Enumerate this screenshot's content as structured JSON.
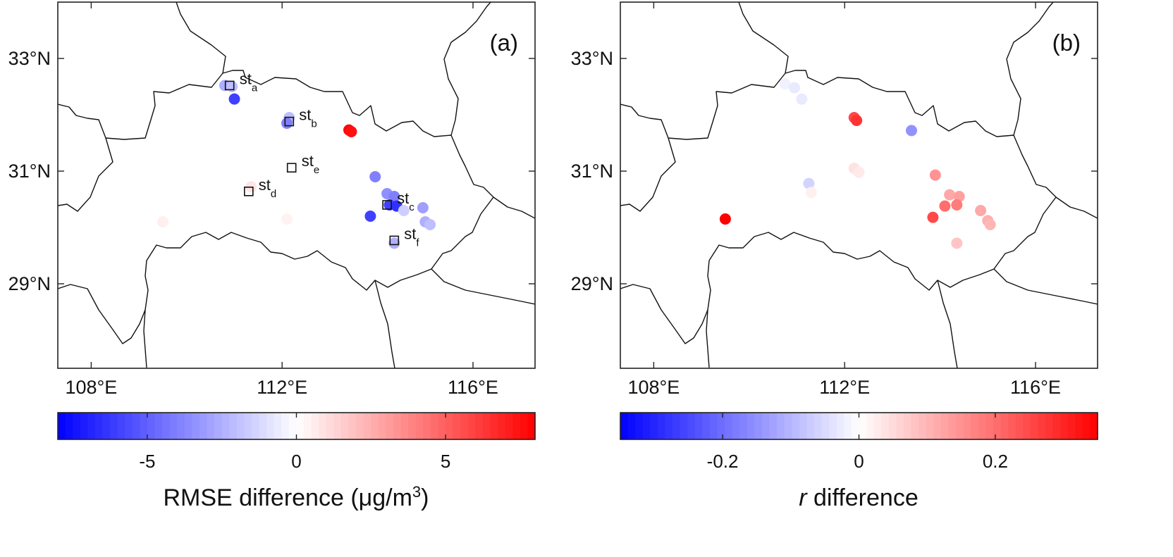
{
  "panels": [
    {
      "id": "a",
      "label": "(a)",
      "colorbar": {
        "title_prefix": "RMSE difference (μg/m",
        "title_sup": "3",
        "title_suffix": ")",
        "range": [
          -8,
          8
        ],
        "ticks": [
          {
            "value": -5,
            "label": "-5"
          },
          {
            "value": 0,
            "label": "0"
          },
          {
            "value": 5,
            "label": "5"
          }
        ]
      },
      "points": [
        {
          "lon": 110.8,
          "lat": 32.52,
          "value": -2.5
        },
        {
          "lon": 110.95,
          "lat": 32.5,
          "value": -2.0
        },
        {
          "lon": 111.0,
          "lat": 32.28,
          "value": -6.0
        },
        {
          "lon": 112.15,
          "lat": 31.95,
          "value": -2.0
        },
        {
          "lon": 112.1,
          "lat": 31.85,
          "value": -4.0
        },
        {
          "lon": 113.4,
          "lat": 31.73,
          "value": 7.8
        },
        {
          "lon": 113.45,
          "lat": 31.7,
          "value": 7.5
        },
        {
          "lon": 111.35,
          "lat": 30.72,
          "value": 0.8
        },
        {
          "lon": 112.1,
          "lat": 30.15,
          "value": 0.4
        },
        {
          "lon": 109.5,
          "lat": 30.1,
          "value": 0.5
        },
        {
          "lon": 113.95,
          "lat": 30.9,
          "value": -4.0
        },
        {
          "lon": 114.2,
          "lat": 30.6,
          "value": -3.5
        },
        {
          "lon": 114.35,
          "lat": 30.55,
          "value": -4.0
        },
        {
          "lon": 114.25,
          "lat": 30.4,
          "value": -6.0
        },
        {
          "lon": 114.4,
          "lat": 30.38,
          "value": -6.5
        },
        {
          "lon": 113.85,
          "lat": 30.2,
          "value": -6.0
        },
        {
          "lon": 114.55,
          "lat": 30.3,
          "value": -1.5
        },
        {
          "lon": 114.95,
          "lat": 30.35,
          "value": -3.0
        },
        {
          "lon": 115.0,
          "lat": 30.1,
          "value": -2.5
        },
        {
          "lon": 115.1,
          "lat": 30.05,
          "value": -2.0
        },
        {
          "lon": 114.35,
          "lat": 29.72,
          "value": -2.5
        }
      ],
      "stations": [
        {
          "name": "st",
          "sub": "a",
          "lon": 110.9,
          "lat": 32.52
        },
        {
          "name": "st",
          "sub": "b",
          "lon": 112.15,
          "lat": 31.88
        },
        {
          "name": "st",
          "sub": "c",
          "lon": 114.2,
          "lat": 30.4
        },
        {
          "name": "st",
          "sub": "d",
          "lon": 111.3,
          "lat": 30.64
        },
        {
          "name": "st",
          "sub": "e",
          "lon": 112.2,
          "lat": 31.06
        },
        {
          "name": "st",
          "sub": "f",
          "lon": 114.35,
          "lat": 29.77
        }
      ]
    },
    {
      "id": "b",
      "label": "(b)",
      "colorbar": {
        "title_prefix": "r",
        "title_suffix": " difference",
        "range": [
          -0.35,
          0.35
        ],
        "ticks": [
          {
            "value": -0.2,
            "label": "-0.2"
          },
          {
            "value": 0,
            "label": "0"
          },
          {
            "value": 0.2,
            "label": "0.2"
          }
        ]
      },
      "points": [
        {
          "lon": 110.75,
          "lat": 32.55,
          "value": -0.02
        },
        {
          "lon": 110.95,
          "lat": 32.48,
          "value": -0.03
        },
        {
          "lon": 111.1,
          "lat": 32.28,
          "value": -0.03
        },
        {
          "lon": 112.2,
          "lat": 31.95,
          "value": 0.25
        },
        {
          "lon": 112.25,
          "lat": 31.9,
          "value": 0.28
        },
        {
          "lon": 113.4,
          "lat": 31.72,
          "value": -0.15
        },
        {
          "lon": 111.25,
          "lat": 30.78,
          "value": -0.06
        },
        {
          "lon": 111.3,
          "lat": 30.62,
          "value": 0.02
        },
        {
          "lon": 112.2,
          "lat": 31.05,
          "value": 0.04
        },
        {
          "lon": 112.3,
          "lat": 30.98,
          "value": 0.03
        },
        {
          "lon": 109.5,
          "lat": 30.15,
          "value": 0.35
        },
        {
          "lon": 113.9,
          "lat": 30.93,
          "value": 0.15
        },
        {
          "lon": 114.2,
          "lat": 30.58,
          "value": 0.12
        },
        {
          "lon": 114.4,
          "lat": 30.55,
          "value": 0.13
        },
        {
          "lon": 114.1,
          "lat": 30.38,
          "value": 0.2
        },
        {
          "lon": 114.35,
          "lat": 30.4,
          "value": 0.18
        },
        {
          "lon": 113.85,
          "lat": 30.18,
          "value": 0.25
        },
        {
          "lon": 114.85,
          "lat": 30.3,
          "value": 0.12
        },
        {
          "lon": 115.0,
          "lat": 30.12,
          "value": 0.11
        },
        {
          "lon": 115.05,
          "lat": 30.05,
          "value": 0.1
        },
        {
          "lon": 114.35,
          "lat": 29.72,
          "value": 0.08
        }
      ],
      "stations": []
    }
  ],
  "axes": {
    "lon_range": [
      107.3,
      117.3
    ],
    "lat_range": [
      27.5,
      34.0
    ],
    "x_ticks": [
      {
        "value": 108,
        "label": "108°E"
      },
      {
        "value": 112,
        "label": "112°E"
      },
      {
        "value": 116,
        "label": "116°E"
      }
    ],
    "y_ticks": [
      {
        "value": 33,
        "label": "33°N"
      },
      {
        "value": 31,
        "label": "31°N"
      },
      {
        "value": 29,
        "label": "29°N"
      }
    ]
  },
  "colors": {
    "low": "#0000ff",
    "mid": "#ffffff",
    "high": "#ff0000",
    "station_outline": "#111111",
    "border_line": "#111111"
  }
}
